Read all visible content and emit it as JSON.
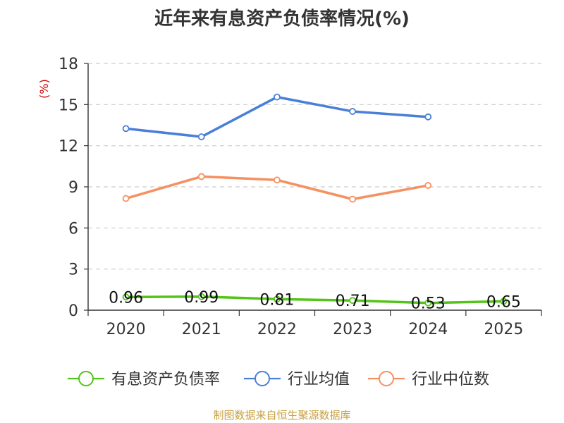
{
  "chart_data": {
    "type": "line",
    "title": "近年来有息资产负债率情况(%)",
    "y_unit_label": "(%)",
    "categories": [
      "2020",
      "2021",
      "2022",
      "2023",
      "2024",
      "2025"
    ],
    "y_ticks": [
      "0",
      "3",
      "6",
      "9",
      "12",
      "15",
      "18"
    ],
    "ylim": [
      0,
      18
    ],
    "grid": "horizontal dashed",
    "legend_position": "bottom",
    "series": [
      {
        "name": "有息资产负债率",
        "color": "#52c41a",
        "values": [
          0.96,
          0.99,
          0.81,
          0.71,
          0.53,
          0.65
        ],
        "labels": [
          "0.96",
          "0.99",
          "0.81",
          "0.71",
          "0.53",
          "0.65"
        ]
      },
      {
        "name": "行业均值",
        "color": "#4a7fd9",
        "values": [
          13.25,
          12.65,
          15.55,
          14.5,
          14.1,
          null
        ]
      },
      {
        "name": "行业中位数",
        "color": "#f59060",
        "values": [
          8.15,
          9.75,
          9.5,
          8.1,
          9.1,
          null
        ]
      }
    ]
  },
  "source_note": "制图数据来自恒生聚源数据库"
}
